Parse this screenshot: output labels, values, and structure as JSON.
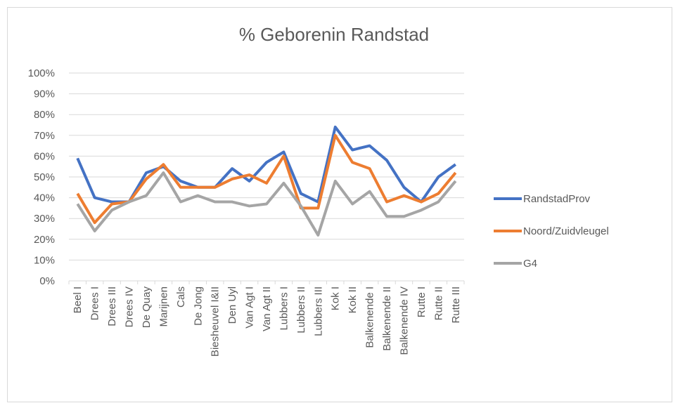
{
  "chart_data": {
    "type": "line",
    "title": "% Geborenin Randstad",
    "categories": [
      "Beel I",
      "Drees I",
      "Drees III",
      "Drees IV",
      "De Quay",
      "Marijnen",
      "Cals",
      "De Jong",
      "Biesheuvel I&II",
      "Den Uyl",
      "Van Agt I",
      "Van Agt II",
      "Lubbers I",
      "Lubbers II",
      "Lubbers III",
      "Kok I",
      "Kok II",
      "Balkenende I",
      "Balkenende II",
      "Balkenende IV",
      "Rutte I",
      "Rutte II",
      "Rutte III"
    ],
    "series": [
      {
        "name": "RandstadProv",
        "color": "#4472c4",
        "values": [
          59,
          40,
          38,
          38,
          52,
          55,
          48,
          45,
          45,
          54,
          48,
          57,
          62,
          42,
          38,
          74,
          63,
          65,
          58,
          45,
          38,
          50,
          56
        ]
      },
      {
        "name": "Noord/Zuidvleugel",
        "color": "#ed7d31",
        "values": [
          42,
          28,
          37,
          38,
          49,
          56,
          45,
          45,
          45,
          49,
          51,
          47,
          60,
          35,
          35,
          70,
          57,
          54,
          38,
          41,
          38,
          42,
          52
        ]
      },
      {
        "name": "G4",
        "color": "#a5a5a5",
        "values": [
          37,
          24,
          34,
          38,
          41,
          52,
          38,
          41,
          38,
          38,
          36,
          37,
          47,
          36,
          22,
          48,
          37,
          43,
          31,
          31,
          34,
          38,
          48
        ]
      }
    ],
    "ylim": [
      0,
      100
    ],
    "yticks": [
      {
        "value": 0,
        "label": "0%"
      },
      {
        "value": 10,
        "label": "10%"
      },
      {
        "value": 20,
        "label": "20%"
      },
      {
        "value": 30,
        "label": "30%"
      },
      {
        "value": 40,
        "label": "40%"
      },
      {
        "value": 50,
        "label": "50%"
      },
      {
        "value": 60,
        "label": "60%"
      },
      {
        "value": 70,
        "label": "70%"
      },
      {
        "value": 80,
        "label": "80%"
      },
      {
        "value": 90,
        "label": "90%"
      },
      {
        "value": 100,
        "label": "100%"
      }
    ],
    "grid": true,
    "legend": "right"
  }
}
